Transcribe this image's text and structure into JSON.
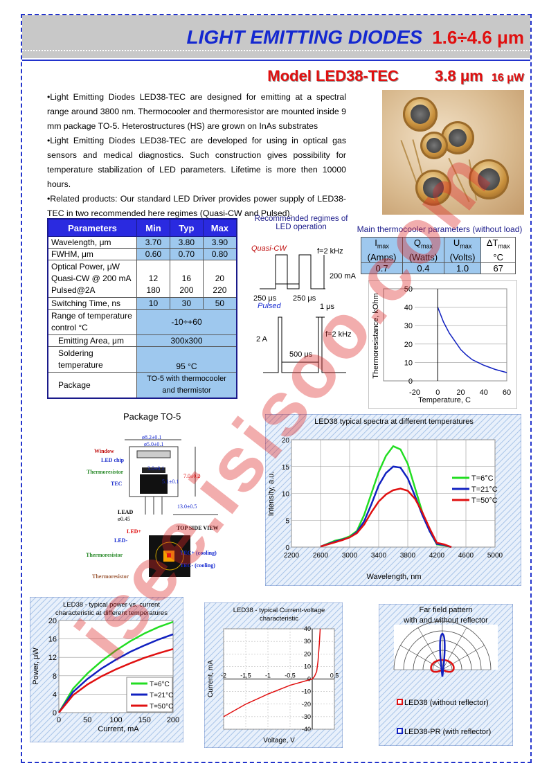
{
  "header": {
    "title": "LIGHT EMITTING DIODES",
    "range": "1.6÷4.6 μm"
  },
  "model": {
    "name": "Model  LED38-TEC",
    "wavelength": "3.8 μm",
    "power": "16 μW"
  },
  "description": [
    "•Light Emitting Diodes LED38-TEC are designed for emitting at a spectral range around 3800 nm. Thermocooler and thermoresistor are mounted inside 9 mm package TO-5. Heterostructures (HS) are grown on InAs substrates",
    "•Light Emitting Diodes LED38-TEC are developed for using in optical gas sensors and medical diagnostics. Such construction gives possibility for temperature stabilization of LED parameters.  Lifetime is more then 10000 hours.",
    "•Related products: Our standard LED Driver provides power supply of LED38-TEC in two recommended here regimes (Quasi-CW and Pulsed)."
  ],
  "params": {
    "headers": [
      "Parameters",
      "Min",
      "Typ",
      "Max"
    ],
    "rows": [
      {
        "name": "Wavelength, μm",
        "min": "3.70",
        "typ": "3.80",
        "max": "3.90"
      },
      {
        "name": "FWHM, μm",
        "min": "0.60",
        "typ": "0.70",
        "max": "0.80"
      },
      {
        "name1": "Optical Power, μW",
        "name2": "Quasi-CW @ 200 mA",
        "name3": "Pulsed@2A",
        "min2": "12",
        "min3": "180",
        "typ2": "16",
        "typ3": "200",
        "max2": "20",
        "max3": "220"
      },
      {
        "name": "Switching Time, ns",
        "min": "10",
        "typ": "30",
        "max": "50"
      },
      {
        "name": "Range of temperature control  °C",
        "val": "-10÷+60"
      },
      {
        "name": "Emitting Area, μm",
        "val": "300x300"
      },
      {
        "name": "Soldering temperature",
        "val": "95 °C"
      },
      {
        "name": "Package",
        "val": "TO-5 with thermocooler and thermistor"
      }
    ]
  },
  "regimes": {
    "title": "Recommended regimes of LED operation",
    "quasi": "Quasi-CW",
    "pulsed": "Pulsed",
    "freq1": "f=2 kHz",
    "freq2": "f=2 kHz",
    "current1": "200 mA",
    "current2": "2 A",
    "t1": "250 μs",
    "t2": "250 μs",
    "t3": "1 μs",
    "t4": "500 μs"
  },
  "tec": {
    "title": "Main thermocooler parameters (without load)",
    "headers": [
      "Imax (Amps)",
      "Qmax (Watts)",
      "Umax (Volts)",
      "ΔTmax °C"
    ],
    "values": [
      "0.7",
      "0.4",
      "1.0",
      "67"
    ]
  },
  "package": {
    "title": "Package TO-5",
    "labels": [
      "Window",
      "LED chip",
      "Thermoresistor",
      "TEC",
      "LEAD",
      "TOP SIDE VIEW",
      "LED+",
      "LED-",
      "Thermoresistor",
      "TEC+ (cooling)",
      "TEC- (cooling)",
      "Thermoresistor"
    ],
    "dims": [
      "ø8.2±0.1",
      "ø5.0±0.1",
      "3.0±0.1",
      "5.1±0.1",
      "7.0±0.2",
      "13.0±0.5",
      "ø0.45"
    ]
  },
  "colors": {
    "blue": "#1428d0",
    "red": "#e01010",
    "green": "#22dd22",
    "curveBlue": "#1020c0"
  },
  "chart_data": [
    {
      "type": "line",
      "title": "",
      "xlabel": "Temperature, C",
      "ylabel": "Thermoresistance, kOhm",
      "xlim": [
        -20,
        60
      ],
      "ylim": [
        0,
        50
      ],
      "xticks": [
        "-20",
        "0",
        "20",
        "40",
        "60"
      ],
      "yticks": [
        "0",
        "10",
        "20",
        "30",
        "40",
        "50"
      ],
      "series": [
        {
          "x": [
            0,
            5,
            10,
            15,
            20,
            25,
            30,
            40,
            50,
            60
          ],
          "y": [
            40,
            32,
            26,
            21.5,
            17,
            14,
            11.5,
            8.5,
            6.2,
            4.5
          ]
        }
      ]
    },
    {
      "type": "line",
      "title": "LED38 typical spectra at different temperatures",
      "xlabel": "Wavelength, nm",
      "ylabel": "Intensity, a.u.",
      "xlim": [
        2200,
        5000
      ],
      "ylim": [
        0,
        20
      ],
      "xticks": [
        "2200",
        "2600",
        "3000",
        "3400",
        "3800",
        "4200",
        "4600",
        "5000"
      ],
      "yticks": [
        "0",
        "5",
        "10",
        "15",
        "20"
      ],
      "x": [
        2600,
        2800,
        2900,
        3000,
        3100,
        3200,
        3300,
        3400,
        3500,
        3600,
        3700,
        3800,
        3900,
        4000,
        4100,
        4200,
        4300,
        4400
      ],
      "series": [
        {
          "name": "T=6°C",
          "color": "#22dd22",
          "y": [
            0.1,
            1.2,
            1.5,
            2.0,
            3.0,
            6.0,
            10.0,
            14.0,
            17.0,
            18.8,
            18.2,
            15.5,
            11.0,
            6.5,
            3.0,
            0.5,
            0.3,
            0.0
          ]
        },
        {
          "name": "T=21°C",
          "color": "#1020c0",
          "y": [
            0.1,
            1.0,
            1.4,
            1.8,
            2.8,
            4.8,
            8.0,
            11.5,
            13.8,
            15.0,
            14.8,
            12.8,
            9.5,
            6.0,
            3.0,
            0.6,
            0.4,
            0.0
          ]
        },
        {
          "name": "T=50°C",
          "color": "#e01010",
          "y": [
            0.1,
            0.9,
            1.3,
            1.8,
            2.6,
            4.2,
            6.5,
            8.5,
            9.8,
            10.6,
            10.9,
            10.5,
            9.0,
            6.5,
            3.5,
            0.8,
            0.5,
            0.0
          ]
        }
      ]
    },
    {
      "type": "line",
      "title": "LED38 - typical power vs. current characteristic at different temperatures",
      "xlabel": "Current, mA",
      "ylabel": "Power, μW",
      "xlim": [
        0,
        200
      ],
      "ylim": [
        0,
        20
      ],
      "xticks": [
        "0",
        "50",
        "100",
        "150",
        "200"
      ],
      "yticks": [
        "0",
        "4",
        "8",
        "12",
        "16",
        "20"
      ],
      "x": [
        0,
        25,
        50,
        75,
        100,
        125,
        150,
        175,
        200
      ],
      "series": [
        {
          "name": "T=6°C",
          "color": "#22dd22",
          "y": [
            0,
            5.2,
            8.5,
            11.2,
            13.5,
            15.5,
            17.2,
            18.6,
            19.7
          ]
        },
        {
          "name": "T=21°C",
          "color": "#1020c0",
          "y": [
            0,
            4.5,
            7.3,
            9.6,
            11.5,
            13.2,
            14.6,
            15.9,
            17.0
          ]
        },
        {
          "name": "T=50°C",
          "color": "#e01010",
          "y": [
            0,
            3.8,
            6.1,
            7.9,
            9.4,
            10.7,
            11.9,
            12.9,
            13.8
          ]
        }
      ]
    },
    {
      "type": "line",
      "title": "LED38 - typical Current-voltage characteristic",
      "xlabel": "Voltage, V",
      "ylabel": "Current, mA",
      "xlim": [
        -2,
        0.5
      ],
      "ylim": [
        -40,
        40
      ],
      "xticks": [
        "-2",
        "-1,5",
        "-1",
        "-0,5",
        "0",
        "0,5"
      ],
      "yticks": [
        "-40",
        "-30",
        "-20",
        "-10",
        "0",
        "10",
        "20",
        "30",
        "40"
      ],
      "series": [
        {
          "x": [
            -2,
            -1.5,
            -1,
            -0.5,
            -0.2,
            0,
            0.05,
            0.1,
            0.13,
            0.16,
            0.18
          ],
          "y": [
            -30,
            -20,
            -12,
            -5,
            -2,
            0,
            2,
            6,
            14,
            28,
            40
          ]
        }
      ]
    },
    {
      "type": "polar",
      "title": "Far field pattern with and without reflector",
      "series": [
        {
          "name": "LED38 (without reflector)",
          "color": "#e01010"
        },
        {
          "name": "LED38-PR (with reflector)",
          "color": "#1020c0"
        }
      ]
    }
  ]
}
